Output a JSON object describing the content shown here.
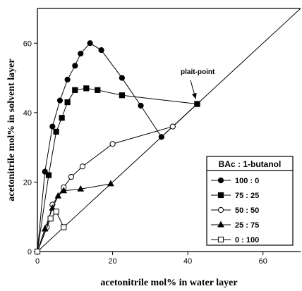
{
  "chart_data": {
    "type": "scatter",
    "xlabel": "acetonitrile mol% in water layer",
    "ylabel": "acetonitrile mol% in solvent layer",
    "xlim": [
      0,
      70
    ],
    "ylim": [
      0,
      70
    ],
    "x_ticks": [
      "0",
      "20",
      "40",
      "60"
    ],
    "y_ticks": [
      "0",
      "20",
      "40",
      "60"
    ],
    "grid": false,
    "diagonal_line": true,
    "legend_title": "BAc : 1-butanol",
    "legend_placement": "bottom-right",
    "annotation": "plait-point",
    "series": [
      {
        "name": "100 :   0",
        "marker": "circle-filled",
        "x": [
          0,
          2,
          4,
          6,
          8,
          10,
          11.5,
          14,
          17,
          22.5,
          27.5,
          33,
          42.5
        ],
        "y": [
          0,
          23,
          36,
          43.5,
          49.5,
          53.5,
          57,
          60,
          58,
          50,
          42,
          33,
          42.5
        ]
      },
      {
        "name": "75 :  25",
        "marker": "square-filled",
        "x": [
          0,
          3,
          5,
          6.5,
          8,
          10,
          13,
          16,
          22.5,
          42.5
        ],
        "y": [
          0,
          22,
          34.5,
          38.5,
          43,
          46.5,
          47,
          46.5,
          45,
          42.5
        ]
      },
      {
        "name": "50 :  50",
        "marker": "circle-open",
        "x": [
          0,
          2.5,
          4,
          7,
          9,
          12,
          20,
          36,
          42.5
        ],
        "y": [
          0,
          7,
          13.5,
          18.5,
          21.5,
          24.5,
          31,
          36,
          42.5
        ]
      },
      {
        "name": "25 :  75",
        "marker": "triangle-filled",
        "x": [
          0,
          2,
          4,
          5.5,
          7,
          11.5,
          19.5
        ],
        "y": [
          0,
          6.5,
          12.5,
          16,
          17.5,
          18,
          19.5
        ]
      },
      {
        "name": "0 : 100",
        "marker": "square-open",
        "x": [
          0,
          3.5,
          5,
          7
        ],
        "y": [
          0,
          9.5,
          11.5,
          7
        ]
      }
    ]
  }
}
